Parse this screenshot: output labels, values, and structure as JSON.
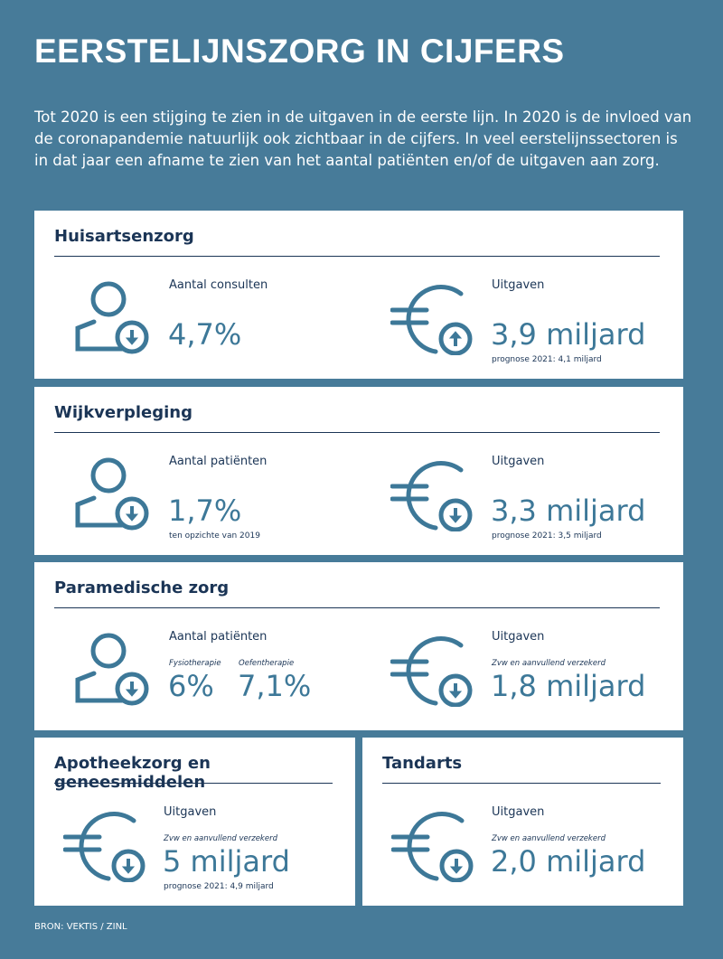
{
  "title": "EERSTELIJNSZORG IN CIJFERS",
  "intro": "Tot 2020 is een stijging te zien in de uitgaven in de eerste lijn. In 2020 is de invloed van de coronapandemie natuurlijk ook zichtbaar in de cijfers. In veel eerstelijnssectoren is in dat jaar een afname te zien van het aantal patiënten en/of de uitgaven aan zorg.",
  "colors": {
    "background": "#477b99",
    "heading": "#1b3556",
    "value": "#3d7898"
  },
  "cards": [
    {
      "title": "Huisartsenzorg",
      "left": {
        "icon": "person-arrow-down-icon",
        "label": "Aantal consulten",
        "value": "4,7%"
      },
      "right": {
        "icon": "euro-arrow-up-icon",
        "label": "Uitgaven",
        "value": "3,9 miljard",
        "note": "prognose 2021: 4,1 miljard"
      }
    },
    {
      "title": "Wijkverpleging",
      "left": {
        "icon": "person-arrow-down-icon",
        "label": "Aantal patiënten",
        "value": "1,7%",
        "note": "ten opzichte van 2019"
      },
      "right": {
        "icon": "euro-arrow-down-icon",
        "label": "Uitgaven",
        "value": "3,3 miljard",
        "note": "prognose 2021: 3,5 miljard"
      }
    },
    {
      "title": "Paramedische zorg",
      "left": {
        "icon": "person-arrow-down-icon",
        "label": "Aantal patiënten",
        "sub1": "Fysiotherapie",
        "value1": "6%",
        "sub2": "Oefentherapie",
        "value2": "7,1%"
      },
      "right": {
        "icon": "euro-arrow-down-icon",
        "label": "Uitgaven",
        "sub": "Zvw en aanvullend verzekerd",
        "value": "1,8 miljard"
      }
    },
    {
      "title": "Apotheekzorg en geneesmiddelen",
      "right": {
        "icon": "euro-arrow-down-icon",
        "label": "Uitgaven",
        "sub": "Zvw en aanvullend verzekerd",
        "value": "5 miljard",
        "note": "prognose 2021: 4,9 miljard"
      }
    },
    {
      "title": "Tandarts",
      "right": {
        "icon": "euro-arrow-down-icon",
        "label": "Uitgaven",
        "sub": "Zvw en aanvullend verzekerd",
        "value": "2,0 miljard"
      }
    }
  ],
  "source": "BRON: VEKTIS / ZINL"
}
